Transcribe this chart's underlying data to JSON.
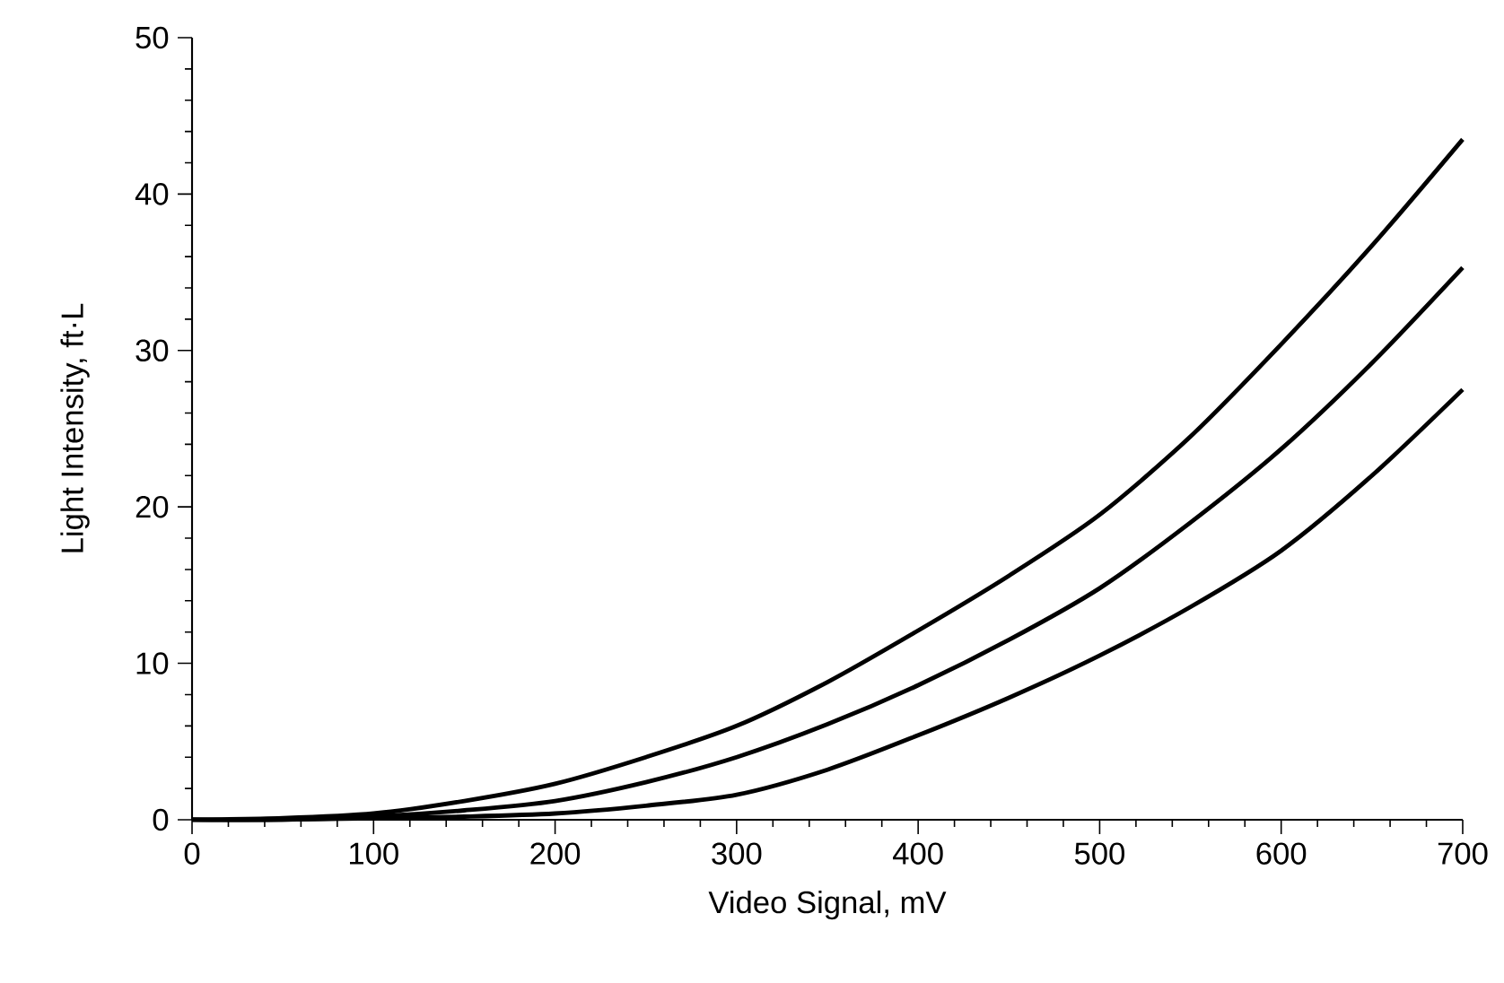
{
  "chart_data": {
    "type": "line",
    "xlabel": "Video Signal, mV",
    "ylabel": "Light Intensity, ft·L",
    "x": [
      0,
      50,
      100,
      150,
      200,
      250,
      300,
      350,
      400,
      450,
      500,
      550,
      600,
      650,
      700
    ],
    "series": [
      {
        "color": "#000000",
        "values": [
          0,
          0.1,
          0.4,
          1.2,
          2.3,
          4.0,
          6.0,
          8.8,
          12.1,
          15.6,
          19.5,
          24.5,
          30.4,
          36.7,
          43.5
        ]
      },
      {
        "color": "#000000",
        "values": [
          0,
          0.0,
          0.2,
          0.6,
          1.2,
          2.4,
          4.0,
          6.1,
          8.6,
          11.5,
          14.8,
          19.0,
          23.7,
          29.2,
          35.3
        ]
      },
      {
        "color": "#000000",
        "values": [
          0,
          0,
          0.1,
          0.2,
          0.4,
          0.9,
          1.6,
          3.2,
          5.4,
          7.8,
          10.5,
          13.6,
          17.2,
          22.0,
          27.5
        ]
      }
    ],
    "xlim": [
      0,
      700
    ],
    "ylim": [
      0,
      50
    ],
    "xticks": [
      0,
      100,
      200,
      300,
      400,
      500,
      600,
      700
    ],
    "yticks": [
      0,
      10,
      20,
      30,
      40,
      50
    ],
    "marker": "none",
    "line_style": "solid"
  }
}
